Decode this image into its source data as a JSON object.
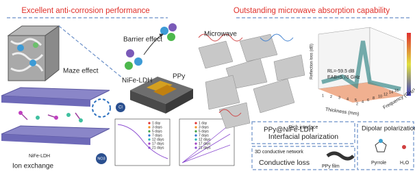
{
  "left_title": "Excellent anti-corrosion performance",
  "right_title": "Outstanding microwave absorption capability",
  "labels": {
    "barrier_effect": "Barrier effect",
    "maze_effect": "Maze effect",
    "nife_ldh_top": "NiFe-LDH",
    "ppy": "PPy",
    "nife_ldh_bottom": "NiFe-LDH",
    "ion_exchange": "Ion exchange",
    "microwave": "Microwave",
    "composite": "PPy@NiFe-LDH",
    "cl": "Cl",
    "no3": "NO3"
  },
  "plot_1": {
    "legend": [
      "1 day",
      "3 days",
      "5 days",
      "7 days",
      "12 days",
      "17 days",
      "21 days"
    ]
  },
  "plot_2": {
    "legend": [
      "1 day",
      "3 days",
      "5 days",
      "7 days",
      "12 days",
      "17 days",
      "21 days"
    ]
  },
  "rl_chart": {
    "y_label": "Reflection loss (dB)",
    "x_label": "Thickness (mm)",
    "z_label": "Frequency (GHz)",
    "rl": "RL=-59.5 dB",
    "eab": "EAB=5.76 GHz",
    "thickness_ticks": [
      "1",
      "2",
      "3",
      "4",
      "5"
    ],
    "frequency_ticks": [
      "2",
      "4",
      "6",
      "8",
      "10",
      "12",
      "14",
      "16"
    ]
  },
  "mechanisms": {
    "rich_interface": "Rich interface",
    "interfacial": "Interfacial polarization",
    "network": "3D conductive network",
    "conductive_loss": "Conductive loss",
    "ppy_film": "PPy film",
    "dipolar": "Dipolar polarization",
    "pyrrole": "Pyrrole",
    "h2o": "H₂O"
  }
}
